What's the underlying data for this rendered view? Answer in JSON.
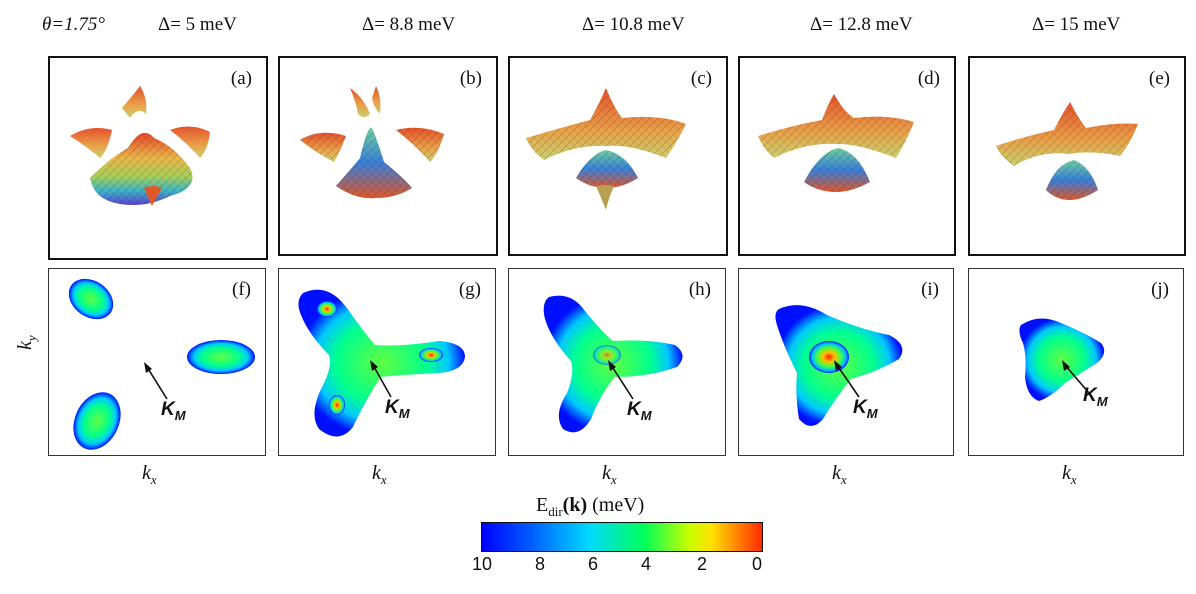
{
  "figure": {
    "theta_label": "θ=1.75°",
    "headers": [
      "Δ= 5 meV",
      "Δ= 8.8 meV",
      "Δ= 10.8 meV",
      "Δ= 12.8 meV",
      "Δ= 15 meV"
    ],
    "panels_top": [
      "(a)",
      "(b)",
      "(c)",
      "(d)",
      "(e)"
    ],
    "panels_bottom": [
      "(f)",
      "(g)",
      "(h)",
      "(i)",
      "(j)"
    ],
    "kx_label": "k",
    "kx_sub": "x",
    "ky_label": "k",
    "ky_sub": "y",
    "km_label": "K",
    "km_sub": "M",
    "colorbar_title_main": "E",
    "colorbar_title_sub": "dir",
    "colorbar_title_k": "(k)",
    "colorbar_title_unit": "(meV)",
    "colorbar_ticks": [
      "10",
      "8",
      "6",
      "4",
      "2",
      "0"
    ],
    "colors": {
      "low": "#0000ff",
      "mid": "#00ff5a",
      "high": "#ff2a00"
    }
  }
}
